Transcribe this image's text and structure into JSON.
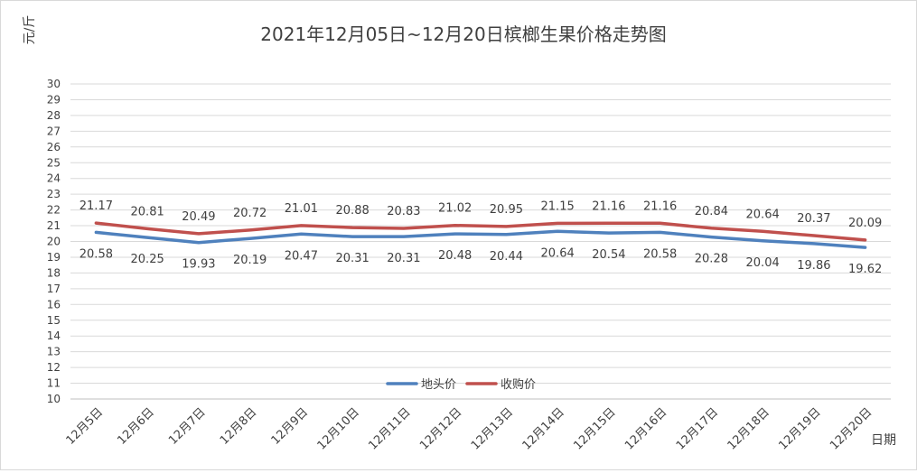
{
  "chart_data": {
    "type": "line",
    "title": "2021年12月05日~12月20日槟榔生果价格走势图",
    "ylabel": "元/斤",
    "xlabel": "日期",
    "ylim": [
      10,
      30
    ],
    "ytick_step": 1,
    "grid": true,
    "legend_position": "bottom-center",
    "categories": [
      "12月5日",
      "12月6日",
      "12月7日",
      "12月8日",
      "12月9日",
      "12月10日",
      "12月11日",
      "12月12日",
      "12月13日",
      "12月14日",
      "12月15日",
      "12月16日",
      "12月17日",
      "12月18日",
      "12月19日",
      "12月20日"
    ],
    "series": [
      {
        "name": "地头价",
        "color": "#4f81bd",
        "values": [
          20.58,
          20.25,
          19.93,
          20.19,
          20.47,
          20.31,
          20.31,
          20.48,
          20.44,
          20.64,
          20.54,
          20.58,
          20.28,
          20.04,
          19.86,
          19.62
        ]
      },
      {
        "name": "收购价",
        "color": "#c0504d",
        "values": [
          21.17,
          20.81,
          20.49,
          20.72,
          21.01,
          20.88,
          20.83,
          21.02,
          20.95,
          21.15,
          21.16,
          21.16,
          20.84,
          20.64,
          20.37,
          20.09
        ]
      }
    ]
  }
}
